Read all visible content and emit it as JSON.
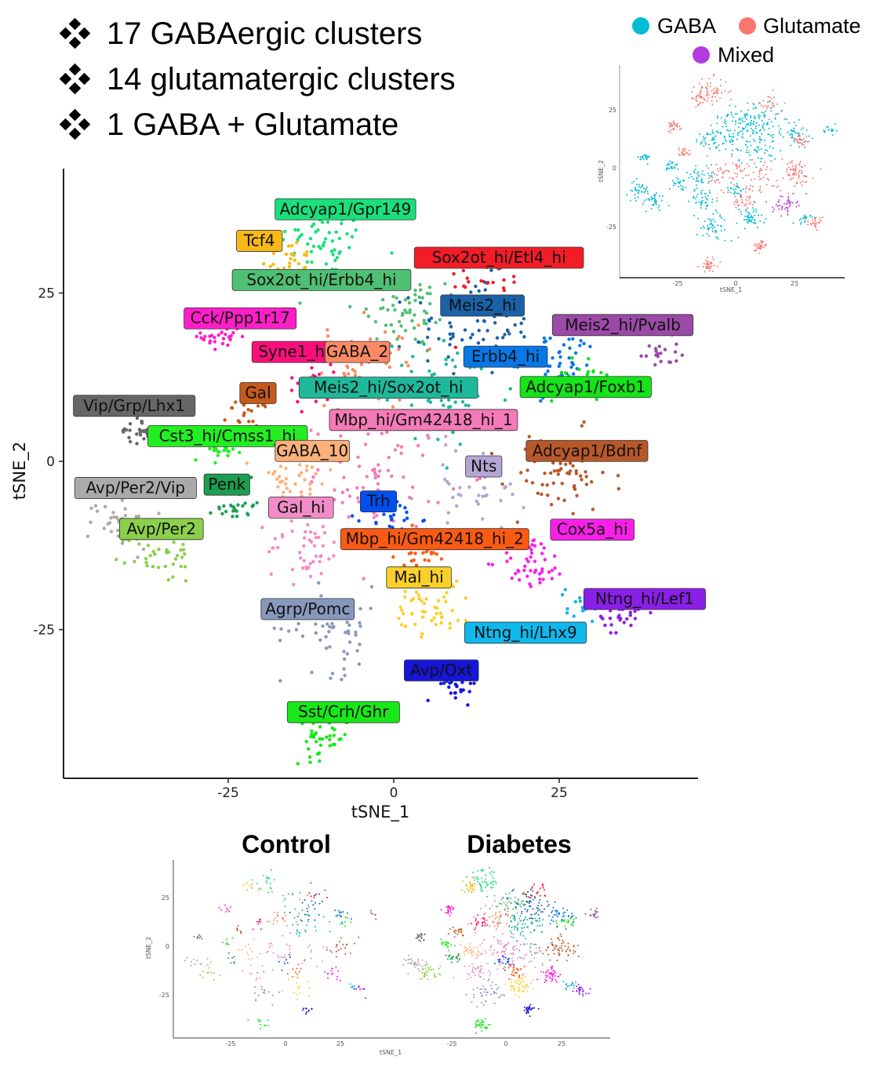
{
  "bullets": [
    {
      "icon": "diamond-bullet-icon",
      "text": "17 GABAergic clusters"
    },
    {
      "icon": "diamond-bullet-icon",
      "text": "14 glutamatergic clusters"
    },
    {
      "icon": "diamond-bullet-icon",
      "text": "1 GABA + Glutamate"
    }
  ],
  "chart_data": [
    {
      "type": "scatter",
      "title": "",
      "xlabel": "tSNE_1",
      "ylabel": "tSNE_2",
      "xlim": [
        -50,
        46
      ],
      "ylim": [
        -47,
        44
      ],
      "xticks": [
        "-25",
        "0",
        "25"
      ],
      "yticks": [
        "25",
        "0",
        "-25"
      ],
      "xtick_values": [
        -25,
        0,
        25
      ],
      "ytick_values": [
        25,
        0,
        -25
      ],
      "grid": false,
      "legend": "none",
      "clusters": [
        {
          "name": "Adcyap1/Gpr149",
          "color": "#19e07a",
          "label_x": -7.3,
          "label_y": 37.5,
          "x": -10,
          "y": 33,
          "spread": 3.5,
          "n": 60
        },
        {
          "name": "Tcf4",
          "color": "#f7b917",
          "label_x": -20.3,
          "label_y": 32.8,
          "x": -16,
          "y": 30,
          "spread": 2,
          "n": 30
        },
        {
          "name": "Sox2ot_hi/Erbb4_hi",
          "color": "#4fbf73",
          "label_x": -10.9,
          "label_y": 27.0,
          "x": 2,
          "y": 22,
          "spread": 4,
          "n": 60
        },
        {
          "name": "Sox2ot_hi/Etl4_hi",
          "color": "#f21d27",
          "label_x": 15.9,
          "label_y": 30.3,
          "x": 14,
          "y": 27,
          "spread": 3,
          "n": 30
        },
        {
          "name": "Meis2_hi",
          "color": "#1a62a8",
          "label_x": 13.4,
          "label_y": 23.2,
          "x": 12,
          "y": 20,
          "spread": 4.5,
          "n": 70
        },
        {
          "name": "Meis2_hi/Pvalb",
          "color": "#9b4aa8",
          "label_x": 34.6,
          "label_y": 20.3,
          "x": 40,
          "y": 16,
          "spread": 1.5,
          "n": 20
        },
        {
          "name": "Cck/Ppp1r17",
          "color": "#ff1ec8",
          "label_x": -23.2,
          "label_y": 21.3,
          "x": -26,
          "y": 18.5,
          "spread": 1.5,
          "n": 30
        },
        {
          "name": "Syne1_hi",
          "color": "#fa0f7a",
          "label_x": -15.1,
          "label_y": 16.3,
          "x": -12,
          "y": 12,
          "spread": 2.5,
          "n": 30
        },
        {
          "name": "GABA_2",
          "color": "#fa8a64",
          "label_x": -5.5,
          "label_y": 16.3,
          "x": -4,
          "y": 14,
          "spread": 4,
          "n": 60
        },
        {
          "name": "Erbb4_hi",
          "color": "#0877e8",
          "label_x": 16.9,
          "label_y": 15.6,
          "x": 25,
          "y": 15,
          "spread": 3,
          "n": 50
        },
        {
          "name": "Gal",
          "color": "#c45a1c",
          "label_x": -20.5,
          "label_y": 10.2,
          "x": -22,
          "y": 7,
          "spread": 1.5,
          "n": 25
        },
        {
          "name": "Meis2_hi/Sox2ot_hi",
          "color": "#1fb89b",
          "label_x": -0.8,
          "label_y": 11.0,
          "x": 8,
          "y": 10,
          "spread": 5,
          "n": 80
        },
        {
          "name": "Adcyap1/Foxb1",
          "color": "#14e418",
          "label_x": 29.0,
          "label_y": 11.1,
          "x": 28,
          "y": 12,
          "spread": 2,
          "n": 25
        },
        {
          "name": "Vip/Grp/Lhx1",
          "color": "#666666",
          "label_x": -39.2,
          "label_y": 8.3,
          "x": -39,
          "y": 4.5,
          "spread": 1.2,
          "n": 25
        },
        {
          "name": "Mbp_hi/Gm42418_hi_1",
          "color": "#f57ab8",
          "label_x": 4.5,
          "label_y": 6.2,
          "x": -2,
          "y": -2,
          "spread": 5,
          "n": 70
        },
        {
          "name": "Cst3_hi/Cmss1_hi",
          "color": "#22ee22",
          "label_x": -25.1,
          "label_y": 3.8,
          "x": -27,
          "y": 1.2,
          "spread": 1.5,
          "n": 25
        },
        {
          "name": "GABA_10",
          "color": "#fcb07a",
          "label_x": -12.3,
          "label_y": 1.6,
          "x": -15,
          "y": -3,
          "spread": 3,
          "n": 45
        },
        {
          "name": "Nts",
          "color": "#b3a5d4",
          "label_x": 13.6,
          "label_y": -0.7,
          "x": 12,
          "y": -4,
          "spread": 4,
          "n": 40
        },
        {
          "name": "Adcyap1/Bdnf",
          "color": "#b8582a",
          "label_x": 29.2,
          "label_y": 1.6,
          "x": 25,
          "y": -2,
          "spread": 4,
          "n": 70
        },
        {
          "name": "Avp/Per2/Vip",
          "color": "#aaaaaa",
          "label_x": -39.0,
          "label_y": -3.9,
          "x": -41,
          "y": -9,
          "spread": 2.5,
          "n": 40
        },
        {
          "name": "Penk",
          "color": "#1c9e50",
          "label_x": -25.2,
          "label_y": -3.4,
          "x": -24,
          "y": -6.5,
          "spread": 1.5,
          "n": 25
        },
        {
          "name": "Gal_hi",
          "color": "#f28cc8",
          "label_x": -14.0,
          "label_y": -6.8,
          "x": -13,
          "y": -13,
          "spread": 3,
          "n": 45
        },
        {
          "name": "Trh",
          "color": "#0050f0",
          "label_x": -2.3,
          "label_y": -5.9,
          "x": 0,
          "y": -8.5,
          "spread": 2,
          "n": 25
        },
        {
          "name": "Avp/Per2",
          "color": "#8ccf4a",
          "label_x": -35.1,
          "label_y": -10.0,
          "x": -35,
          "y": -14,
          "spread": 2.5,
          "n": 40
        },
        {
          "name": "Mbp_hi/Gm42418_hi_2",
          "color": "#fb5a14",
          "label_x": 6.2,
          "label_y": -11.5,
          "x": 4,
          "y": -13.5,
          "spread": 2.5,
          "n": 35
        },
        {
          "name": "Cox5a_hi",
          "color": "#f820e8",
          "label_x": 30.0,
          "label_y": -10.1,
          "x": 21,
          "y": -15,
          "spread": 2.5,
          "n": 50
        },
        {
          "name": "Mal_hi",
          "color": "#fbd02a",
          "label_x": 3.8,
          "label_y": -17.2,
          "x": 6,
          "y": -21,
          "spread": 3,
          "n": 55
        },
        {
          "name": "Agrp/Pomc",
          "color": "#8898bd",
          "label_x": -13.0,
          "label_y": -21.9,
          "x": -9,
          "y": -25,
          "spread": 4,
          "n": 55
        },
        {
          "name": "Ntng_hi/Lef1",
          "color": "#8a1fe8",
          "label_x": 37.9,
          "label_y": -20.4,
          "x": 34,
          "y": -23,
          "spread": 1.5,
          "n": 30
        },
        {
          "name": "Ntng_hi/Lhx9",
          "color": "#10b8ee",
          "label_x": 19.9,
          "label_y": -25.4,
          "x": 29,
          "y": -21,
          "spread": 1.5,
          "n": 20
        },
        {
          "name": "Avp/Oxt",
          "color": "#1616d8",
          "label_x": 7.2,
          "label_y": -31.0,
          "x": 10,
          "y": -33,
          "spread": 1.5,
          "n": 35
        },
        {
          "name": "Sst/Crh/Ghr",
          "color": "#18e818",
          "label_x": -7.6,
          "label_y": -37.2,
          "x": -11,
          "y": -41,
          "spread": 2,
          "n": 40
        }
      ]
    },
    {
      "type": "scatter",
      "title": "",
      "xlabel": "tSNE_1",
      "ylabel": "tSNE_2",
      "xticks": [
        "-25",
        "0",
        "25"
      ],
      "yticks": [
        "25",
        "0",
        "-25"
      ],
      "legend": "top",
      "legend_entries": [
        {
          "name": "GABA",
          "color": "#00bcd4"
        },
        {
          "name": "Glutamate",
          "color": "#f8766d"
        },
        {
          "name": "Mixed",
          "color": "#b23be0"
        }
      ]
    },
    {
      "type": "scatter",
      "title": "Control",
      "xlabel": "tSNE_1",
      "ylabel": "tSNE_2",
      "xticks": [
        "-25",
        "0",
        "25"
      ],
      "yticks": [
        "25",
        "0",
        "-25"
      ],
      "density": 0.35
    },
    {
      "type": "scatter",
      "title": "Diabetes",
      "xlabel": "",
      "ylabel": "",
      "xticks": [
        "-25",
        "0",
        "25"
      ],
      "density": 1.0
    }
  ]
}
